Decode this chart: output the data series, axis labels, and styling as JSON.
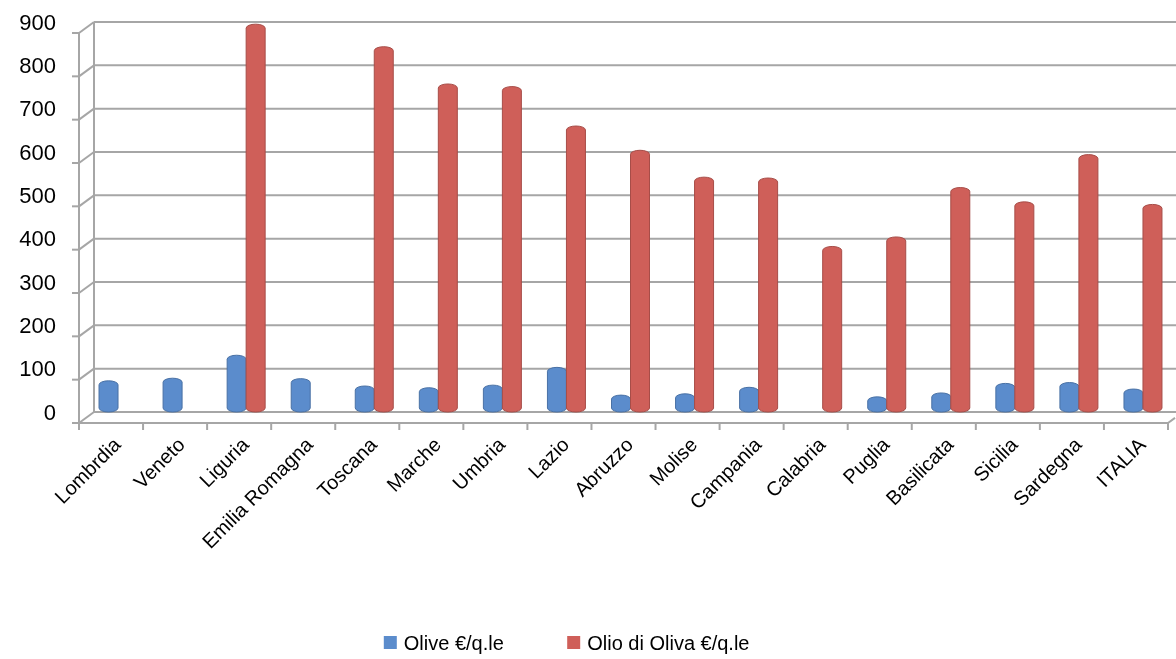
{
  "chart_data": {
    "type": "bar",
    "categories": [
      "Lombrdia",
      "Veneto",
      "Liguria",
      "Emilia Romagna",
      "Toscana",
      "Marche",
      "Umbria",
      "Lazio",
      "Abruzzo",
      "Molise",
      "Campania",
      "Calabria",
      "Puglia",
      "Basilicata",
      "Sicilia",
      "Sardegna",
      "ITALIA"
    ],
    "series": [
      {
        "name": "Olive €/q.le",
        "color": "#5b8ccc",
        "values": [
          72,
          78,
          131,
          77,
          60,
          56,
          62,
          103,
          39,
          42,
          57,
          null,
          35,
          44,
          66,
          68,
          53
        ]
      },
      {
        "name": "Olio di Oliva €/q.le",
        "color": "#cf5f59",
        "values": [
          null,
          null,
          895,
          null,
          843,
          757,
          751,
          660,
          604,
          542,
          540,
          382,
          404,
          518,
          485,
          594,
          479
        ]
      }
    ],
    "ylim": [
      0,
      900
    ],
    "yticks": [
      0,
      100,
      200,
      300,
      400,
      500,
      600,
      700,
      800,
      900
    ],
    "grid": "y",
    "legend": "bottom"
  }
}
